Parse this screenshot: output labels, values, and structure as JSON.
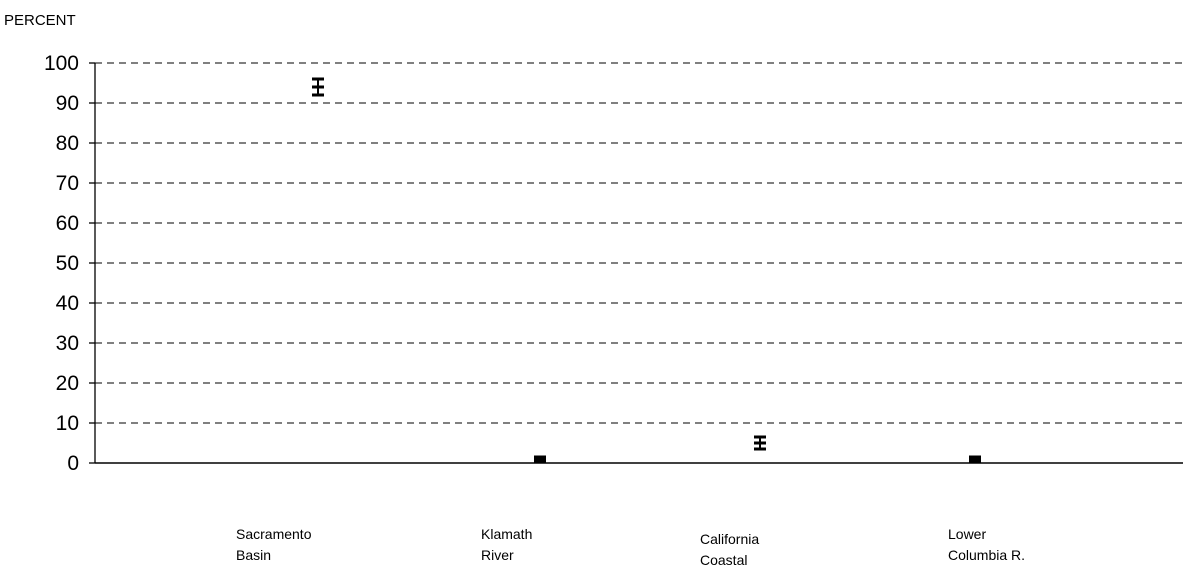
{
  "chart_data": {
    "type": "scatter",
    "ylabel": "PERCENT",
    "ylim": [
      0,
      100
    ],
    "yticks": [
      0,
      10,
      20,
      30,
      40,
      50,
      60,
      70,
      80,
      90,
      100
    ],
    "grid": true,
    "categories": [
      [
        "Sacramento",
        "Basin"
      ],
      [
        "Klamath",
        "River"
      ],
      [
        "California",
        "Coastal"
      ],
      [
        "Lower",
        "Columbia R."
      ]
    ],
    "series": [
      {
        "values": [
          96,
          0.5,
          6.5,
          0.5
        ]
      },
      {
        "values": [
          94,
          1.0,
          5.0,
          1.0
        ]
      },
      {
        "values": [
          92,
          1.5,
          3.5,
          1.5
        ]
      }
    ]
  }
}
